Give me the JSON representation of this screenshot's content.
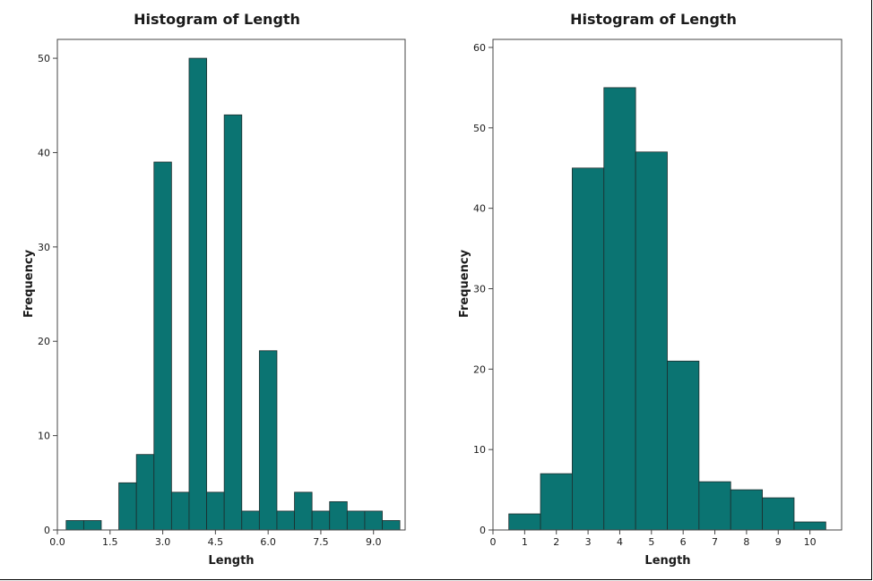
{
  "chart_data": [
    {
      "type": "bar",
      "title": "Histogram of Length",
      "xlabel": "Length",
      "ylabel": "Frequency",
      "xlim": [
        0,
        9.9
      ],
      "ylim": [
        0,
        52
      ],
      "bin_width": 0.5,
      "bin_starts": [
        0.25,
        0.75,
        1.75,
        2.25,
        2.75,
        3.25,
        3.75,
        4.25,
        4.75,
        5.25,
        5.75,
        6.25,
        6.75,
        7.25,
        7.75,
        8.25,
        8.75,
        9.25
      ],
      "values": [
        1,
        1,
        5,
        8,
        39,
        4,
        50,
        4,
        44,
        2,
        19,
        2,
        4,
        2,
        3,
        2,
        2,
        1
      ],
      "xticks": [
        "0.0",
        "1.5",
        "3.0",
        "4.5",
        "6.0",
        "7.5",
        "9.0"
      ],
      "xtick_values": [
        0,
        1.5,
        3.0,
        4.5,
        6.0,
        7.5,
        9.0
      ],
      "yticks": [
        "0",
        "10",
        "20",
        "30",
        "40",
        "50"
      ],
      "ytick_values": [
        0,
        10,
        20,
        30,
        40,
        50
      ],
      "bar_color": "#0b7472",
      "grid": false
    },
    {
      "type": "bar",
      "title": "Histogram of Length",
      "xlabel": "Length",
      "ylabel": "Frequency",
      "xlim": [
        0,
        11
      ],
      "ylim": [
        0,
        61
      ],
      "bin_width": 1,
      "bin_starts": [
        0.5,
        1.5,
        2.5,
        3.5,
        4.5,
        5.5,
        6.5,
        7.5,
        8.5,
        9.5
      ],
      "values": [
        2,
        7,
        45,
        55,
        47,
        21,
        6,
        5,
        4,
        1
      ],
      "xticks": [
        "0",
        "1",
        "2",
        "3",
        "4",
        "5",
        "6",
        "7",
        "8",
        "9",
        "10"
      ],
      "xtick_values": [
        0,
        1,
        2,
        3,
        4,
        5,
        6,
        7,
        8,
        9,
        10
      ],
      "yticks": [
        "0",
        "10",
        "20",
        "30",
        "40",
        "50",
        "60"
      ],
      "ytick_values": [
        0,
        10,
        20,
        30,
        40,
        50,
        60
      ],
      "bar_color": "#0b7472",
      "grid": false
    }
  ]
}
